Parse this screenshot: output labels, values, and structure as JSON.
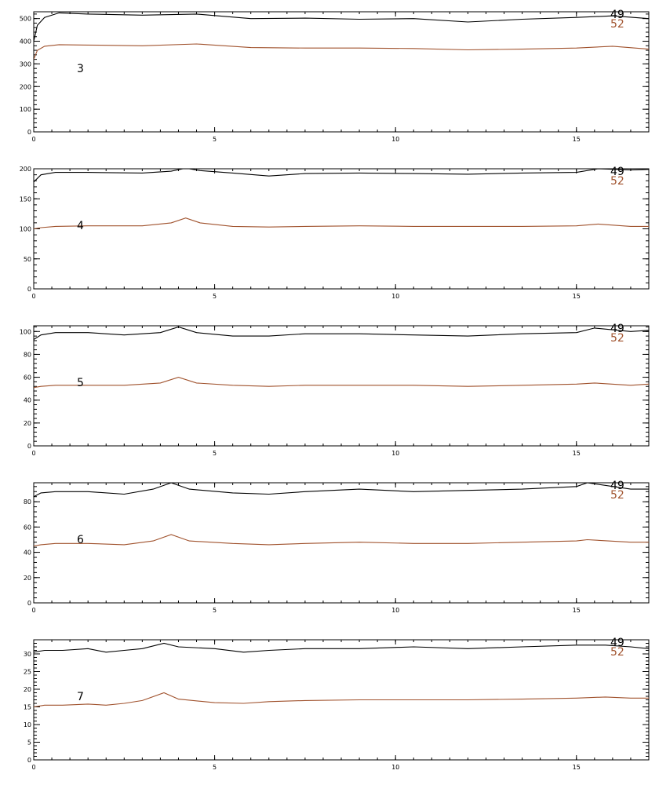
{
  "colors": {
    "series_49": "#000000",
    "series_52": "#a0522d",
    "axis": "#000000",
    "background": "#ffffff"
  },
  "chart_data": [
    {
      "type": "line",
      "panel_label": "3",
      "xlim": [
        0,
        17
      ],
      "ylim": [
        0,
        530
      ],
      "xticks": [
        0,
        5,
        10,
        15
      ],
      "yticks": [
        0,
        100,
        200,
        300,
        400,
        500
      ],
      "legend": [
        "49",
        "52"
      ],
      "series": [
        {
          "name": "49",
          "x": [
            0.0,
            0.1,
            0.3,
            0.7,
            1.5,
            3.0,
            4.5,
            6.0,
            7.5,
            9.0,
            10.5,
            12.0,
            13.5,
            15.0,
            16.0,
            17.0
          ],
          "values": [
            400,
            470,
            505,
            525,
            520,
            515,
            520,
            500,
            502,
            497,
            500,
            485,
            497,
            505,
            512,
            500
          ]
        },
        {
          "name": "52",
          "x": [
            0.0,
            0.1,
            0.3,
            0.7,
            1.5,
            3.0,
            4.5,
            6.0,
            7.5,
            9.0,
            10.5,
            12.0,
            13.5,
            15.0,
            16.0,
            17.0
          ],
          "values": [
            320,
            360,
            378,
            385,
            383,
            380,
            388,
            372,
            370,
            370,
            368,
            362,
            365,
            370,
            378,
            365
          ]
        }
      ]
    },
    {
      "type": "line",
      "panel_label": "4",
      "xlim": [
        0,
        17
      ],
      "ylim": [
        0,
        200
      ],
      "xticks": [
        0,
        5,
        10,
        15
      ],
      "yticks": [
        0,
        50,
        100,
        150,
        200
      ],
      "legend": [
        "49",
        "52"
      ],
      "series": [
        {
          "name": "49",
          "x": [
            0.0,
            0.2,
            0.6,
            1.5,
            3.0,
            3.8,
            4.2,
            4.6,
            5.5,
            6.5,
            7.5,
            9.0,
            10.5,
            12.0,
            13.5,
            15.0,
            15.6,
            16.5,
            17.0
          ],
          "values": [
            178,
            190,
            194,
            194,
            193,
            196,
            201,
            197,
            193,
            188,
            192,
            193,
            192,
            191,
            193,
            194,
            200,
            198,
            199
          ]
        },
        {
          "name": "52",
          "x": [
            0.0,
            0.2,
            0.6,
            1.5,
            3.0,
            3.8,
            4.2,
            4.6,
            5.5,
            6.5,
            7.5,
            9.0,
            10.5,
            12.0,
            13.5,
            15.0,
            15.6,
            16.5,
            17.0
          ],
          "values": [
            100,
            102,
            104,
            105,
            105,
            110,
            118,
            110,
            104,
            103,
            104,
            105,
            104,
            104,
            104,
            105,
            108,
            104,
            104
          ]
        }
      ]
    },
    {
      "type": "line",
      "panel_label": "5",
      "xlim": [
        0,
        17
      ],
      "ylim": [
        0,
        105
      ],
      "xticks": [
        0,
        5,
        10,
        15
      ],
      "yticks": [
        0,
        20,
        40,
        60,
        80,
        100
      ],
      "legend": [
        "49",
        "52"
      ],
      "series": [
        {
          "name": "49",
          "x": [
            0.0,
            0.2,
            0.6,
            1.5,
            2.5,
            3.5,
            4.0,
            4.5,
            5.5,
            6.5,
            7.5,
            9.0,
            10.5,
            12.0,
            13.5,
            15.0,
            15.5,
            16.5,
            17.0
          ],
          "values": [
            93,
            97,
            99,
            99,
            97,
            99,
            104,
            99,
            96,
            96,
            98,
            98,
            97,
            96,
            98,
            99,
            103,
            100,
            101
          ]
        },
        {
          "name": "52",
          "x": [
            0.0,
            0.2,
            0.6,
            1.5,
            2.5,
            3.5,
            4.0,
            4.5,
            5.5,
            6.5,
            7.5,
            9.0,
            10.5,
            12.0,
            13.5,
            15.0,
            15.5,
            16.5,
            17.0
          ],
          "values": [
            51,
            52,
            53,
            53,
            53,
            55,
            60,
            55,
            53,
            52,
            53,
            53,
            53,
            52,
            53,
            54,
            55,
            53,
            54
          ]
        }
      ]
    },
    {
      "type": "line",
      "panel_label": "6",
      "xlim": [
        0,
        17
      ],
      "ylim": [
        0,
        95
      ],
      "xticks": [
        0,
        5,
        10,
        15
      ],
      "yticks": [
        0,
        20,
        40,
        60,
        80
      ],
      "legend": [
        "49",
        "52"
      ],
      "series": [
        {
          "name": "49",
          "x": [
            0.0,
            0.2,
            0.6,
            1.5,
            2.5,
            3.3,
            3.8,
            4.3,
            5.5,
            6.5,
            7.5,
            9.0,
            10.5,
            12.0,
            13.5,
            15.0,
            15.3,
            16.5,
            17.0
          ],
          "values": [
            84,
            87,
            88,
            88,
            86,
            90,
            95,
            90,
            87,
            86,
            88,
            90,
            88,
            89,
            90,
            92,
            95,
            90,
            90
          ]
        },
        {
          "name": "52",
          "x": [
            0.0,
            0.2,
            0.6,
            1.5,
            2.5,
            3.3,
            3.8,
            4.3,
            5.5,
            6.5,
            7.5,
            9.0,
            10.5,
            12.0,
            13.5,
            15.0,
            15.3,
            16.5,
            17.0
          ],
          "values": [
            45,
            46,
            47,
            47,
            46,
            49,
            54,
            49,
            47,
            46,
            47,
            48,
            47,
            47,
            48,
            49,
            50,
            48,
            48
          ]
        }
      ]
    },
    {
      "type": "line",
      "panel_label": "7",
      "xlim": [
        0,
        17
      ],
      "ylim": [
        0,
        34
      ],
      "xticks": [
        0,
        5,
        10,
        15
      ],
      "yticks": [
        0,
        5,
        10,
        15,
        20,
        25,
        30
      ],
      "legend": [
        "49",
        "52"
      ],
      "series": [
        {
          "name": "49",
          "x": [
            0.0,
            0.3,
            0.8,
            1.5,
            2.0,
            2.5,
            3.0,
            3.6,
            4.0,
            5.0,
            5.8,
            6.5,
            7.5,
            9.0,
            10.5,
            12.0,
            13.5,
            15.0,
            15.8,
            16.5,
            17.0
          ],
          "values": [
            30.5,
            31,
            31,
            31.5,
            30.5,
            31,
            31.5,
            33,
            32,
            31.5,
            30.5,
            31,
            31.5,
            31.5,
            32,
            31.5,
            32,
            32.5,
            32.5,
            32,
            31.5
          ]
        },
        {
          "name": "52",
          "x": [
            0.0,
            0.3,
            0.8,
            1.5,
            2.0,
            2.5,
            3.0,
            3.6,
            4.0,
            5.0,
            5.8,
            6.5,
            7.5,
            9.0,
            10.5,
            12.0,
            13.5,
            15.0,
            15.8,
            16.5,
            17.0
          ],
          "values": [
            15,
            15.5,
            15.5,
            15.8,
            15.5,
            16,
            16.8,
            19,
            17.2,
            16.2,
            16,
            16.5,
            16.8,
            17,
            17,
            17,
            17.2,
            17.5,
            17.8,
            17.5,
            17.5
          ]
        }
      ]
    }
  ]
}
